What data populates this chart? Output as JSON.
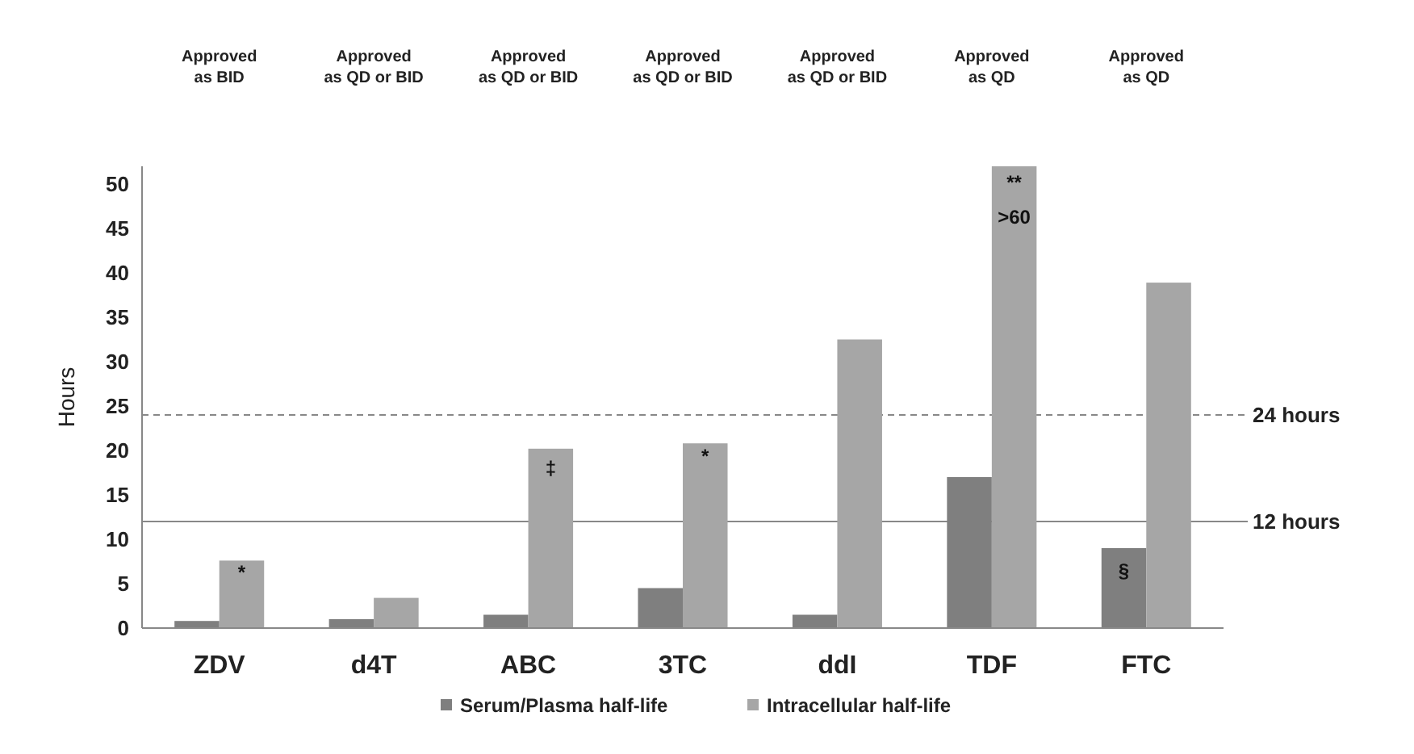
{
  "chart_data": {
    "type": "bar",
    "ylabel": "Hours",
    "categories": [
      "ZDV",
      "d4T",
      "ABC",
      "3TC",
      "ddI",
      "TDF",
      "FTC"
    ],
    "series": [
      {
        "name": "Serum/Plasma half-life",
        "color": "#7f7f7f",
        "values": [
          0.8,
          1,
          1.5,
          4.5,
          1.5,
          17,
          9
        ]
      },
      {
        "name": "Intracellular half-life",
        "color": "#a6a6a6",
        "values": [
          7.6,
          3.4,
          20.2,
          20.8,
          32.5,
          52,
          38.9
        ]
      }
    ],
    "ylim": [
      0,
      52
    ],
    "yticks": [
      0,
      5,
      10,
      15,
      20,
      25,
      30,
      35,
      40,
      45,
      50
    ],
    "grid": false,
    "legend": "bottom",
    "ref_lines": [
      {
        "axis": "y",
        "value": 24,
        "label": "24 hours",
        "line_style": "dashed",
        "color": "#888888"
      },
      {
        "axis": "y",
        "value": 12,
        "label": "12 hours",
        "line_style": "solid",
        "color": "#888888"
      }
    ],
    "annotations": [
      "Approved\nas BID",
      "Approved\nas QD or BID",
      "Approved\nas QD or BID",
      "Approved\nas QD or BID",
      "Approved\nas QD or BID",
      "Approved\nas QD",
      "Approved\nas QD",
      {
        "text": "*",
        "x": "ZDV",
        "y": 6.3
      },
      {
        "text": "‡",
        "x": "ABC",
        "y": 18
      },
      {
        "text": "*",
        "x": "3TC",
        "y": 19.4
      },
      {
        "text": "**",
        "x": "TDF",
        "y": 50.2
      },
      {
        "text": ">60",
        "x": "TDF",
        "y": 46.3
      },
      {
        "text": "§",
        "x": "FTC",
        "y": 6.5
      }
    ]
  }
}
